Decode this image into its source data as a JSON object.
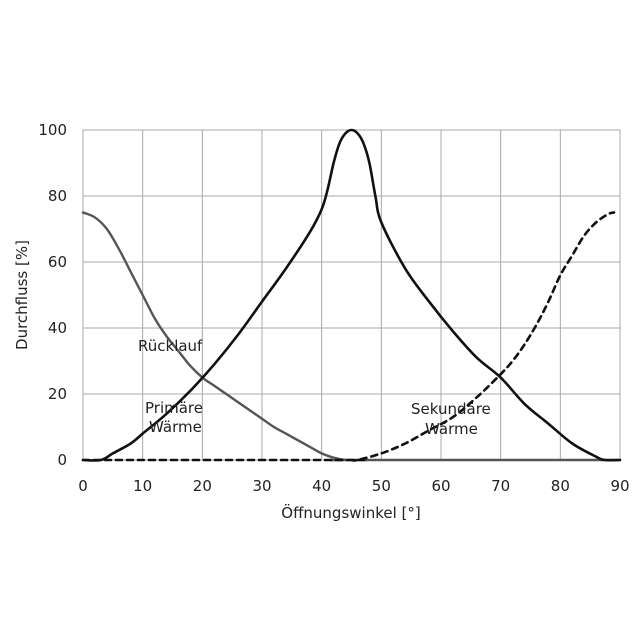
{
  "chart_data": {
    "type": "line",
    "xlabel": "Öffnungswinkel [°]",
    "ylabel": "Durchfluss [%]",
    "xlim": [
      0,
      90
    ],
    "ylim": [
      0,
      100
    ],
    "xticks": [
      "0",
      "10",
      "20",
      "30",
      "40",
      "50",
      "60",
      "70",
      "80",
      "90"
    ],
    "yticks": [
      "0",
      "20",
      "40",
      "60",
      "80",
      "100"
    ],
    "grid": true,
    "annotations": {
      "ruecklauf": "Rücklauf",
      "primaer_1": "Primäre",
      "primaer_2": "Wärme",
      "sekundaer_1": "Sekundäre",
      "sekundaer_2": "Wärme"
    },
    "series": [
      {
        "color": "#555555",
        "dash": "solid",
        "x": [
          0,
          2,
          4,
          6,
          8,
          10,
          12,
          14,
          16,
          18,
          20,
          22,
          24,
          26,
          28,
          30,
          32,
          34,
          36,
          38,
          40,
          42,
          44,
          45,
          90
        ],
        "y": [
          75,
          73.5,
          70,
          64,
          57,
          50,
          43,
          37.5,
          33,
          28.5,
          25,
          22.5,
          20,
          17.5,
          15,
          12.5,
          10,
          8,
          6,
          4,
          2,
          0.7,
          0,
          0,
          0
        ]
      },
      {
        "color": "#111111",
        "dash": "solid",
        "x": [
          0,
          3,
          5,
          8,
          10,
          14,
          18,
          22,
          26,
          30,
          34,
          38,
          40,
          41,
          42,
          43,
          44,
          45,
          46,
          47,
          48,
          49,
          50,
          54,
          58,
          62,
          66,
          70,
          74,
          78,
          82,
          86,
          87.5,
          90
        ],
        "y": [
          0,
          0,
          2,
          5,
          8,
          14,
          21,
          29,
          38,
          48,
          58,
          69,
          76,
          82,
          90,
          96,
          99,
          100,
          99,
          96,
          90,
          80,
          72,
          58,
          48,
          39,
          31,
          25,
          17,
          11,
          5,
          1,
          0,
          0
        ]
      },
      {
        "color": "#111111",
        "dash": "dashed",
        "x": [
          0,
          44,
          45,
          46,
          50,
          54,
          58,
          62,
          66,
          70,
          72,
          74,
          76,
          78,
          80,
          82,
          84,
          86,
          88,
          89
        ],
        "y": [
          0,
          0,
          0,
          0,
          2,
          5,
          9,
          13,
          19,
          26,
          30,
          35,
          41,
          48,
          56,
          62,
          68,
          72,
          74.5,
          75
        ]
      }
    ]
  }
}
